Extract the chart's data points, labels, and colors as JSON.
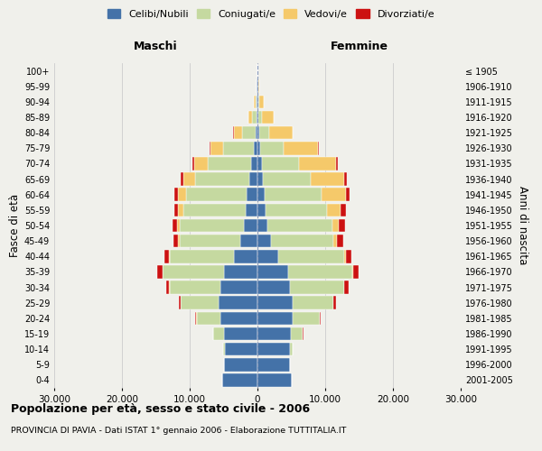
{
  "age_groups": [
    "0-4",
    "5-9",
    "10-14",
    "15-19",
    "20-24",
    "25-29",
    "30-34",
    "35-39",
    "40-44",
    "45-49",
    "50-54",
    "55-59",
    "60-64",
    "65-69",
    "70-74",
    "75-79",
    "80-84",
    "85-89",
    "90-94",
    "95-99",
    "100+"
  ],
  "birth_years": [
    "2001-2005",
    "1996-2000",
    "1991-1995",
    "1986-1990",
    "1981-1985",
    "1976-1980",
    "1971-1975",
    "1966-1970",
    "1961-1965",
    "1956-1960",
    "1951-1955",
    "1946-1950",
    "1941-1945",
    "1936-1940",
    "1931-1935",
    "1926-1930",
    "1921-1925",
    "1916-1920",
    "1911-1915",
    "1906-1910",
    "≤ 1905"
  ],
  "colors": {
    "celibi": "#4472a8",
    "coniugati": "#c5d9a0",
    "vedovi": "#f5c96a",
    "divorziati": "#cc1111"
  },
  "maschi": {
    "celibi": [
      5200,
      4900,
      4800,
      5000,
      5500,
      5800,
      5500,
      5000,
      3500,
      2500,
      2000,
      1800,
      1600,
      1200,
      900,
      600,
      300,
      150,
      100,
      80,
      20
    ],
    "coniugati": [
      5,
      30,
      300,
      1500,
      3500,
      5500,
      7500,
      9000,
      9500,
      9000,
      9500,
      9200,
      9000,
      8000,
      6500,
      4500,
      2000,
      600,
      200,
      50,
      10
    ],
    "vedovi": [
      0,
      0,
      1,
      2,
      5,
      10,
      30,
      50,
      100,
      200,
      400,
      700,
      1200,
      1800,
      2000,
      1800,
      1200,
      600,
      250,
      50,
      5
    ],
    "divorziati": [
      0,
      0,
      10,
      50,
      150,
      300,
      500,
      700,
      700,
      700,
      600,
      600,
      500,
      350,
      250,
      150,
      60,
      20,
      10,
      5,
      0
    ]
  },
  "femmine": {
    "nubili": [
      5000,
      4800,
      4800,
      4900,
      5200,
      5200,
      4800,
      4500,
      3000,
      2000,
      1500,
      1200,
      1000,
      800,
      600,
      400,
      200,
      100,
      80,
      70,
      20
    ],
    "coniugate": [
      5,
      40,
      400,
      1800,
      4000,
      6000,
      8000,
      9500,
      9800,
      9200,
      9500,
      9000,
      8500,
      7000,
      5500,
      3500,
      1500,
      500,
      200,
      50,
      10
    ],
    "vedove": [
      0,
      0,
      1,
      2,
      5,
      15,
      40,
      80,
      200,
      500,
      1000,
      2000,
      3500,
      5000,
      5500,
      5000,
      3500,
      1800,
      700,
      200,
      30
    ],
    "divorziate": [
      0,
      0,
      10,
      50,
      150,
      350,
      600,
      800,
      900,
      900,
      900,
      800,
      600,
      350,
      200,
      100,
      50,
      20,
      10,
      5,
      0
    ]
  },
  "xlim": 30000,
  "xticks": [
    -30000,
    -20000,
    -10000,
    0,
    10000,
    20000,
    30000
  ],
  "xticklabels": [
    "30.000",
    "20.000",
    "10.000",
    "0",
    "10.000",
    "20.000",
    "30.000"
  ],
  "title": "Popolazione per età, sesso e stato civile - 2006",
  "subtitle": "PROVINCIA DI PAVIA - Dati ISTAT 1° gennaio 2006 - Elaborazione TUTTITALIA.IT",
  "ylabel_left": "Fasce di età",
  "ylabel_right": "Anni di nascita",
  "label_maschi": "Maschi",
  "label_femmine": "Femmine",
  "legend_labels": [
    "Celibi/Nubili",
    "Coniugati/e",
    "Vedovi/e",
    "Divorziati/e"
  ],
  "bg_color": "#f0f0eb",
  "bar_height": 0.85
}
